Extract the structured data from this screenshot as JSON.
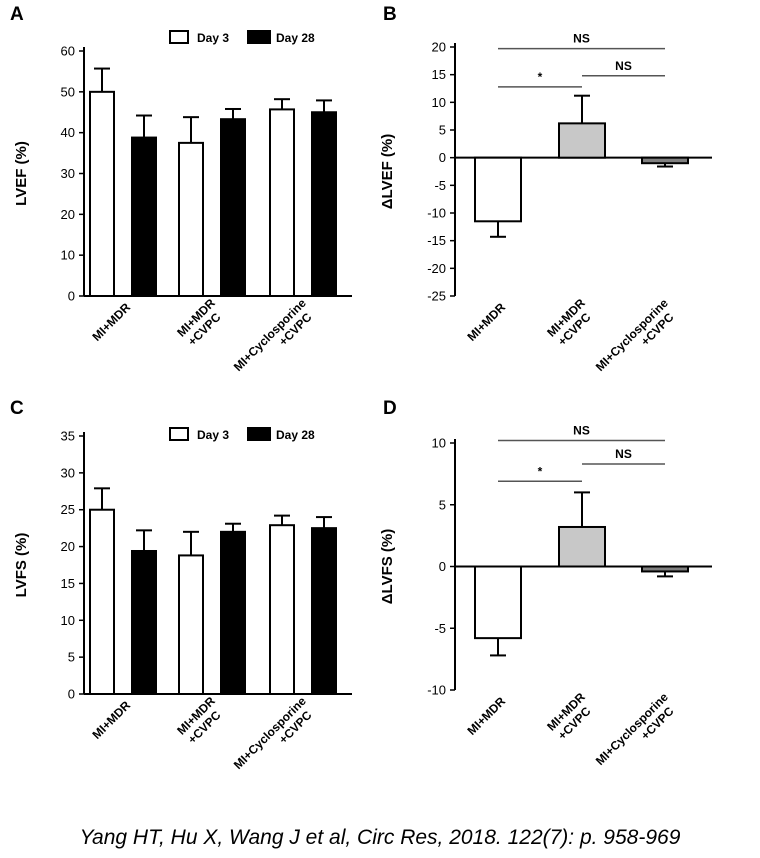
{
  "citation": "Yang HT, Hu X, Wang J et al, Circ Res, 2018. 122(7): p. 958-969",
  "colors": {
    "day3": "#ffffff",
    "day28": "#000000",
    "bar_mdr": "#ffffff",
    "bar_cvpc": "#c8c8c8",
    "bar_cyclo": "#808080"
  },
  "chart_data": [
    {
      "panel": "A",
      "type": "bar",
      "ylabel": "LVEF (%)",
      "ylim": [
        0,
        60
      ],
      "yticks": [
        0,
        10,
        20,
        30,
        40,
        50,
        60
      ],
      "categories": [
        [
          "MI+MDR"
        ],
        [
          "MI+MDR",
          "+CVPC"
        ],
        [
          "MI+Cyclosporine",
          "+CVPC"
        ]
      ],
      "legend": [
        "Day 3",
        "Day 28"
      ],
      "series": [
        {
          "name": "Day 3",
          "values": [
            50,
            37.5,
            45.7
          ],
          "errors": [
            5.7,
            6.3,
            2.5
          ]
        },
        {
          "name": "Day 28",
          "values": [
            38.8,
            43.3,
            45
          ],
          "errors": [
            5.4,
            2.5,
            2.9
          ]
        }
      ]
    },
    {
      "panel": "B",
      "type": "bar",
      "ylabel": "ΔLVEF (%)",
      "ylim": [
        -25,
        20
      ],
      "yticks": [
        -25,
        -20,
        -15,
        -10,
        -5,
        0,
        5,
        10,
        15,
        20
      ],
      "categories": [
        [
          "MI+MDR"
        ],
        [
          "MI+MDR",
          "+CVPC"
        ],
        [
          "MI+Cyclosporine",
          "+CVPC"
        ]
      ],
      "values": [
        -11.5,
        6.2,
        -1
      ],
      "errors": [
        2.8,
        5,
        0.6
      ],
      "significance": [
        {
          "from": 0,
          "to": 2,
          "label": "NS",
          "y": 19.7
        },
        {
          "from": 1,
          "to": 2,
          "label": "NS",
          "y": 14.8
        },
        {
          "from": 0,
          "to": 1,
          "label": "*",
          "y": 12.8
        }
      ]
    },
    {
      "panel": "C",
      "type": "bar",
      "ylabel": "LVFS (%)",
      "ylim": [
        0,
        35
      ],
      "yticks": [
        0,
        5,
        10,
        15,
        20,
        25,
        30,
        35
      ],
      "categories": [
        [
          "MI+MDR"
        ],
        [
          "MI+MDR",
          "+CVPC"
        ],
        [
          "MI+Cyclosporine",
          "+CVPC"
        ]
      ],
      "legend": [
        "Day 3",
        "Day 28"
      ],
      "series": [
        {
          "name": "Day 3",
          "values": [
            25,
            18.8,
            22.9
          ],
          "errors": [
            2.9,
            3.2,
            1.3
          ]
        },
        {
          "name": "Day 28",
          "values": [
            19.4,
            22,
            22.5
          ],
          "errors": [
            2.8,
            1.1,
            1.5
          ]
        }
      ]
    },
    {
      "panel": "D",
      "type": "bar",
      "ylabel": "ΔLVFS (%)",
      "ylim": [
        -10,
        10
      ],
      "yticks": [
        -10,
        -5,
        0,
        5,
        10
      ],
      "categories": [
        [
          "MI+MDR"
        ],
        [
          "MI+MDR",
          "+CVPC"
        ],
        [
          "MI+Cyclosporine",
          "+CVPC"
        ]
      ],
      "values": [
        -5.8,
        3.2,
        -0.4
      ],
      "errors": [
        1.4,
        2.8,
        0.4
      ],
      "significance": [
        {
          "from": 0,
          "to": 2,
          "label": "NS",
          "y": 10.2
        },
        {
          "from": 1,
          "to": 2,
          "label": "NS",
          "y": 8.3
        },
        {
          "from": 0,
          "to": 1,
          "label": "*",
          "y": 6.9
        }
      ]
    }
  ]
}
